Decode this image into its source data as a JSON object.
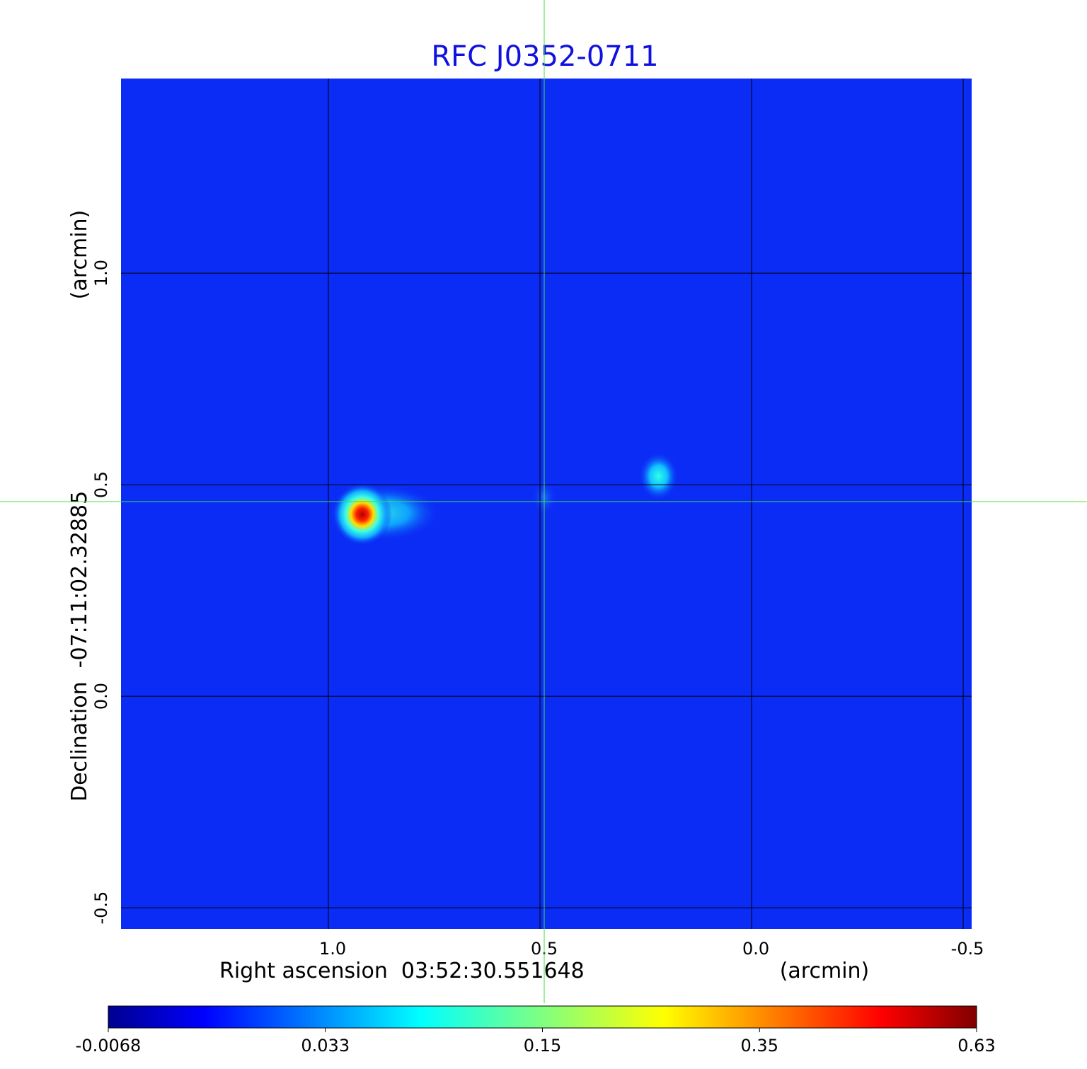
{
  "chart_data": {
    "type": "heatmap",
    "title": "RFC J0352-0711",
    "xlabel": "Right ascension  03:52:30.551648",
    "xunit": "(arcmin)",
    "ylabel": "Declination  -07:11:02.32885",
    "yunit": "(arcmin)",
    "xlim": [
      1.49,
      -0.52
    ],
    "ylim": [
      -0.55,
      1.46
    ],
    "xticks": [
      {
        "v": 1.0,
        "label": "1.0"
      },
      {
        "v": 0.5,
        "label": "0.5"
      },
      {
        "v": 0.0,
        "label": "0.0"
      },
      {
        "v": -0.5,
        "label": "-0.5"
      }
    ],
    "yticks": [
      {
        "v": 1.0,
        "label": "1.0"
      },
      {
        "v": 0.5,
        "label": "0.5"
      },
      {
        "v": 0.0,
        "label": "0.0"
      },
      {
        "v": -0.5,
        "label": "-0.5"
      }
    ],
    "grid": true,
    "crosshair": {
      "x": 0.49,
      "y": 0.46
    },
    "colormap": "jet",
    "colorbar": {
      "placement": "bottom",
      "ticks": [
        {
          "f": 0,
          "label": "-0.0068"
        },
        {
          "f": 0.25,
          "label": "0.033"
        },
        {
          "f": 0.5,
          "label": "0.15"
        },
        {
          "f": 0.75,
          "label": "0.35"
        },
        {
          "f": 1,
          "label": "0.63"
        }
      ]
    },
    "sources": [
      {
        "x": 0.92,
        "y": 0.43,
        "peak": 0.63
      },
      {
        "x": 0.22,
        "y": 0.52,
        "peak": 0.07
      },
      {
        "x": 0.49,
        "y": 0.47,
        "peak": 0.02
      }
    ]
  }
}
